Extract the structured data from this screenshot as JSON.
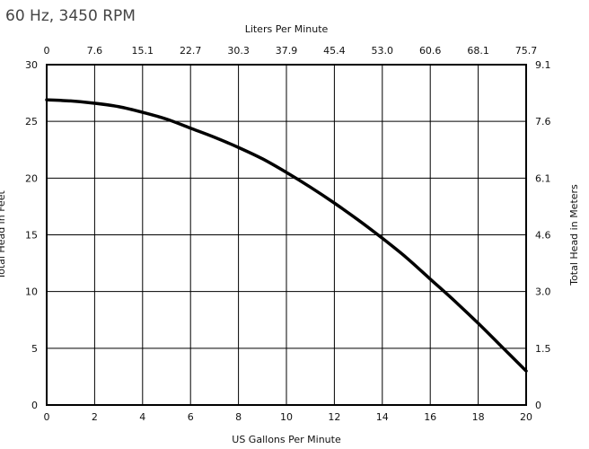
{
  "subtitle": "60 Hz, 3450 RPM",
  "chart_data": {
    "type": "line",
    "title": "",
    "subtitle": "60 Hz, 3450 RPM",
    "xlabel": "US Gallons Per Minute",
    "ylabel": "Total Head in Feet",
    "x2label": "Liters Per Minute",
    "y2label": "Total Head in Meters",
    "xlim": [
      0,
      20
    ],
    "ylim": [
      0,
      30
    ],
    "x_ticks": [
      "0",
      "2",
      "4",
      "6",
      "8",
      "10",
      "12",
      "14",
      "16",
      "18",
      "20"
    ],
    "y_ticks": [
      "0",
      "5",
      "10",
      "15",
      "20",
      "25",
      "30"
    ],
    "x2_ticks": [
      "0",
      "7.6",
      "15.1",
      "22.7",
      "30.3",
      "37.9",
      "45.4",
      "53.0",
      "60.6",
      "68.1",
      "75.7"
    ],
    "y2_ticks": [
      "0",
      "1.5",
      "3.0",
      "4.6",
      "6.1",
      "7.6",
      "9.1"
    ],
    "grid": true,
    "series": [
      {
        "x": [
          0,
          1,
          2,
          3,
          4,
          5,
          6,
          7,
          8,
          9,
          10,
          11,
          12,
          13,
          14,
          15,
          16,
          17,
          18,
          19,
          20
        ],
        "values": [
          26.9,
          26.8,
          26.6,
          26.3,
          25.8,
          25.2,
          24.4,
          23.6,
          22.7,
          21.7,
          20.5,
          19.2,
          17.8,
          16.3,
          14.7,
          13.0,
          11.1,
          9.2,
          7.2,
          5.1,
          3.0
        ]
      }
    ]
  }
}
